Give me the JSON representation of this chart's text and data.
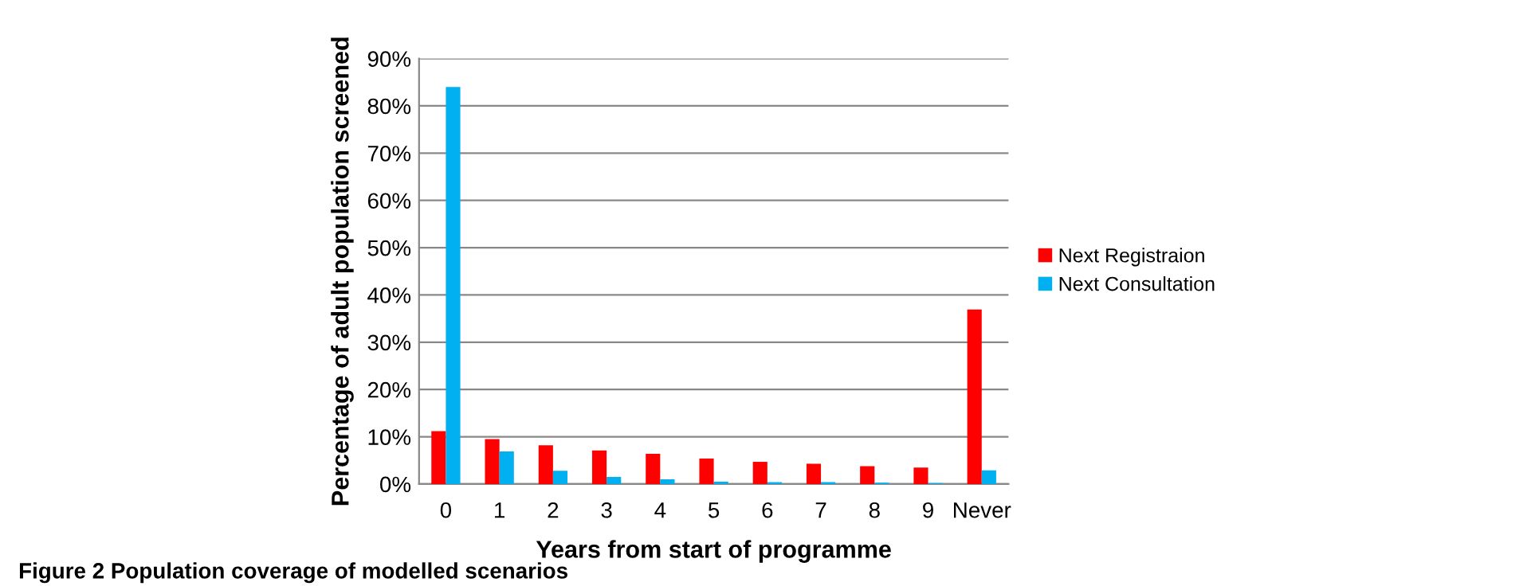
{
  "chart_data": {
    "type": "bar",
    "xlabel": "Years from start of programme",
    "ylabel": "Percentage of adult population screened",
    "categories": [
      "0",
      "1",
      "2",
      "3",
      "4",
      "5",
      "6",
      "7",
      "8",
      "9",
      "Never"
    ],
    "series": [
      {
        "name": "Next Registraion",
        "color": "#ff0000",
        "values": [
          11.2,
          9.5,
          8.2,
          7.1,
          6.4,
          5.4,
          4.7,
          4.3,
          3.8,
          3.5,
          36.9
        ]
      },
      {
        "name": "Next Consultation",
        "color": "#00b0f0",
        "values": [
          84.0,
          6.9,
          2.8,
          1.5,
          1.0,
          0.5,
          0.4,
          0.4,
          0.3,
          0.2,
          2.9
        ]
      }
    ],
    "ylim": [
      0,
      90
    ],
    "yticks": [
      {
        "value": 0,
        "label": "0%"
      },
      {
        "value": 10,
        "label": "10%"
      },
      {
        "value": 20,
        "label": "20%"
      },
      {
        "value": 30,
        "label": "30%"
      },
      {
        "value": 40,
        "label": "40%"
      },
      {
        "value": 50,
        "label": "50%"
      },
      {
        "value": 60,
        "label": "60%"
      },
      {
        "value": 70,
        "label": "70%"
      },
      {
        "value": 80,
        "label": "80%"
      },
      {
        "value": 90,
        "label": "90%"
      }
    ],
    "grid": "y",
    "legend": "right",
    "annotations": [
      "Figure 2 Population coverage of modelled scenarios"
    ]
  }
}
